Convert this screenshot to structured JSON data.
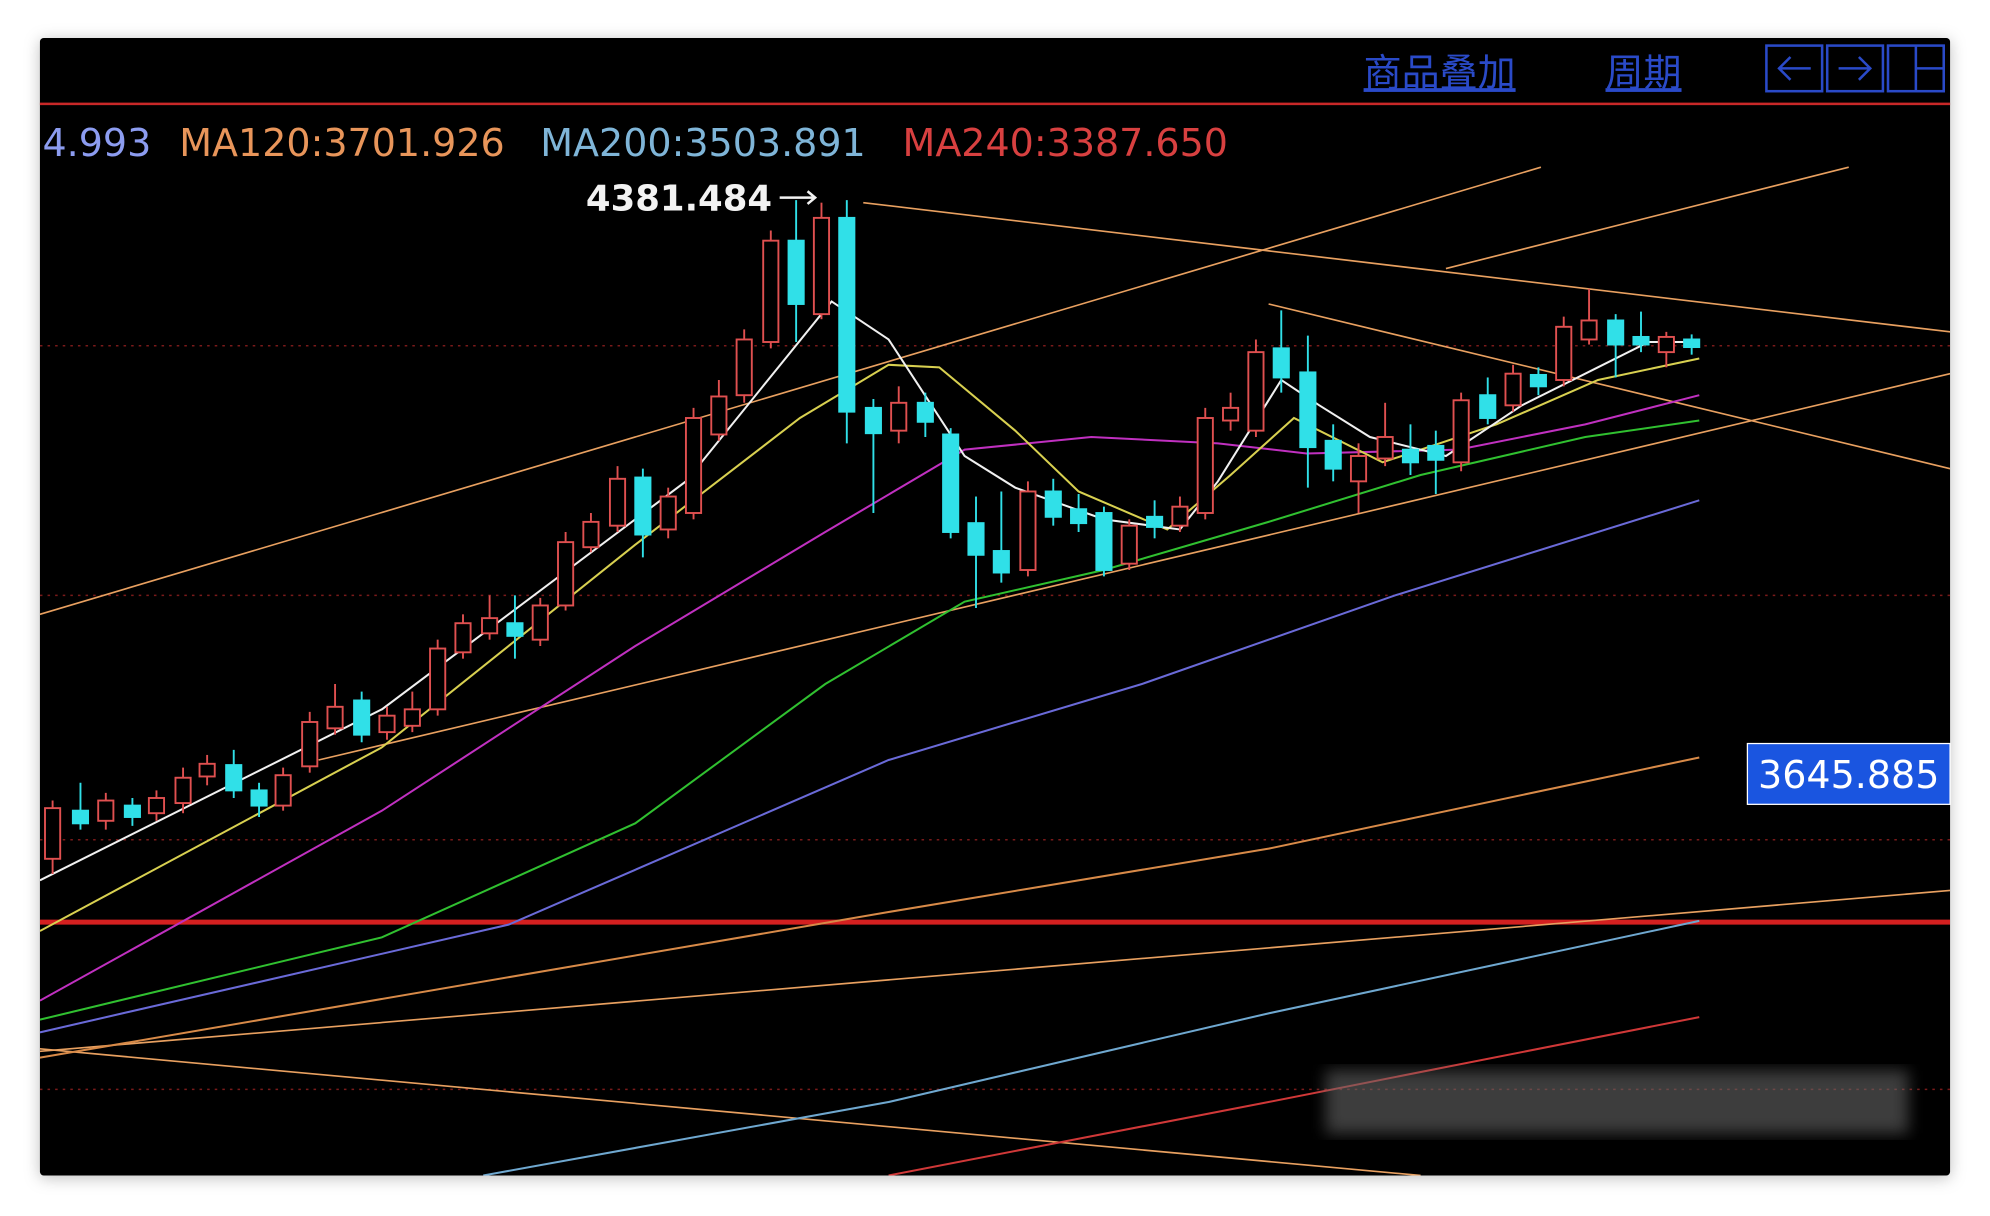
{
  "toolbar": {
    "buttons": [
      "商品叠加",
      "周期"
    ]
  },
  "indicators": [
    "4.993",
    "MA120:3701.926",
    "MA200:3503.891",
    "MA240:3387.650"
  ],
  "labels": {
    "peak": "4381.484",
    "current": "3645.885"
  }
}
